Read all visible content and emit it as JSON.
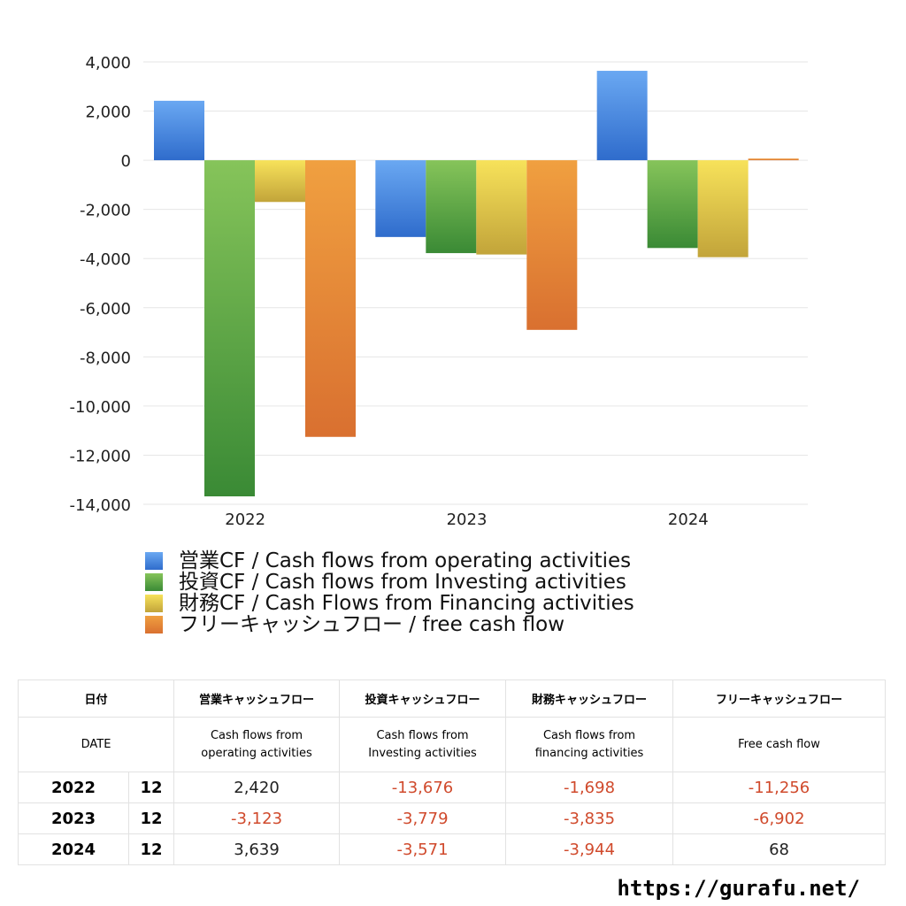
{
  "chart_data": {
    "type": "bar",
    "title": "",
    "xlabel": "",
    "ylabel": "",
    "categories": [
      "2022",
      "2023",
      "2024"
    ],
    "ylim": [
      -14000,
      4000
    ],
    "yticks": [
      4000,
      2000,
      0,
      -2000,
      -4000,
      -6000,
      -8000,
      -10000,
      -12000,
      -14000
    ],
    "ytick_labels": [
      "4,000",
      "2,000",
      "0",
      "-2,000",
      "-4,000",
      "-6,000",
      "-8,000",
      "-10,000",
      "-12,000",
      "-14,000"
    ],
    "grid": true,
    "legend_position": "bottom",
    "series": [
      {
        "name": "営業CF / Cash flows from operating activities",
        "values": [
          2420,
          -3123,
          3639
        ],
        "color_top": "#6aa8f2",
        "color_bottom": "#2f6ccc"
      },
      {
        "name": "投資CF / Cash flows from Investing activities",
        "values": [
          -13676,
          -3779,
          -3571
        ],
        "color_top": "#86c45a",
        "color_bottom": "#3a8a35"
      },
      {
        "name": "財務CF / Cash Flows from Financing activities",
        "values": [
          -1698,
          -3835,
          -3944
        ],
        "color_top": "#f7e25a",
        "color_bottom": "#c2a43a"
      },
      {
        "name": "フリーキャッシュフロー / free cash flow",
        "values": [
          -11256,
          -6902,
          68
        ],
        "color_top": "#f0a040",
        "color_bottom": "#d97030"
      }
    ]
  },
  "table": {
    "headers_ja": [
      "日付",
      "営業キャッシュフロー",
      "投資キャッシュフロー",
      "財務キャッシュフロー",
      "フリーキャッシュフロー"
    ],
    "headers_en": {
      "date": "DATE",
      "operating": [
        "Cash flows from",
        "operating activities"
      ],
      "investing": [
        "Cash flows from",
        "Investing activities"
      ],
      "financing": [
        "Cash flows from",
        "financing activities"
      ],
      "free": "Free cash flow"
    },
    "rows": [
      {
        "year": "2022",
        "month": "12",
        "operating": "2,420",
        "investing": "-13,676",
        "financing": "-1,698",
        "free": "-11,256"
      },
      {
        "year": "2023",
        "month": "12",
        "operating": "-3,123",
        "investing": "-3,779",
        "financing": "-3,835",
        "free": "-6,902"
      },
      {
        "year": "2024",
        "month": "12",
        "operating": "3,639",
        "investing": "-3,571",
        "financing": "-3,944",
        "free": "68"
      }
    ]
  },
  "footer": {
    "url": "https://gurafu.net/"
  }
}
